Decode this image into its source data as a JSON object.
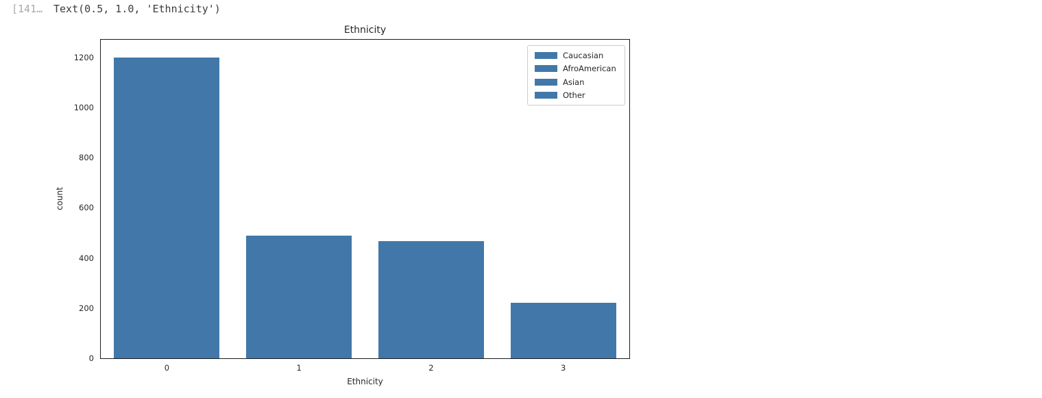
{
  "notebook": {
    "execution_prompt": "[141…",
    "output_text": "Text(0.5, 1.0, 'Ethnicity')"
  },
  "chart_data": {
    "type": "bar",
    "title": "Ethnicity",
    "xlabel": "Ethnicity",
    "ylabel": "count",
    "categories": [
      "0",
      "1",
      "2",
      "3"
    ],
    "values": [
      1200,
      490,
      468,
      220
    ],
    "ylim": [
      0,
      1270
    ],
    "yticks": [
      0,
      200,
      400,
      600,
      800,
      1000,
      1200
    ],
    "grid": false,
    "bar_color": "#4178a9",
    "legend": {
      "position": "upper right",
      "entries": [
        {
          "label": "Caucasian",
          "color": "#4178a9"
        },
        {
          "label": "AfroAmerican",
          "color": "#4178a9"
        },
        {
          "label": "Asian",
          "color": "#4178a9"
        },
        {
          "label": "Other",
          "color": "#4178a9"
        }
      ]
    }
  },
  "colors": {
    "bar": "#4178a9",
    "spine": "#1b1b1b",
    "tick_label": "#262626",
    "prompt_text": "#a9a9a9",
    "output_text": "#3b3b3b",
    "legend_border": "#cbcbcb",
    "background": "#ffffff"
  }
}
